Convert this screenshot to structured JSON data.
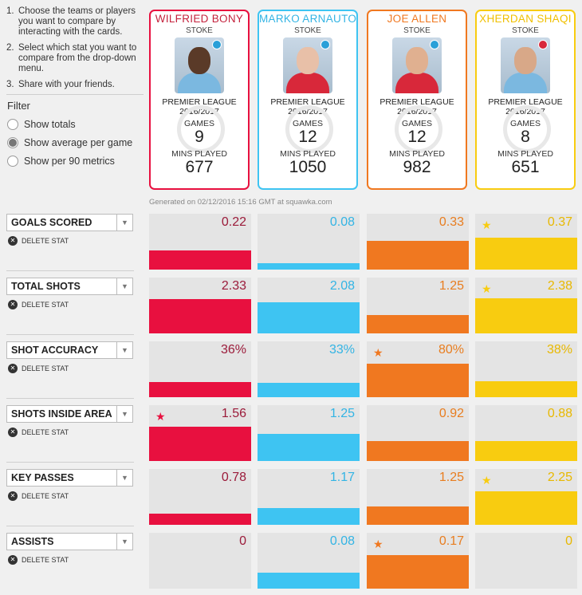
{
  "instructions": [
    {
      "num": "1.",
      "text": "Choose the teams or players you want to compare by interacting with the cards."
    },
    {
      "num": "2.",
      "text": "Select which stat you want to compare from the drop-down menu."
    },
    {
      "num": "3.",
      "text": "Share with your friends."
    }
  ],
  "filter": {
    "title": "Filter",
    "options": [
      "Show totals",
      "Show average per game",
      "Show per 90 metrics"
    ],
    "selected_index": 1
  },
  "labels": {
    "games": "GAMES",
    "mins": "MINS PLAYED",
    "delete": "DELETE STAT"
  },
  "generated": "Generated on 02/12/2016 15:16 GMT at squawka.com",
  "players": [
    {
      "name": "WILFRIED BONY",
      "team": "STOKE",
      "league": "PREMIER LEAGUE",
      "season": "2016/2017",
      "games": "9",
      "mins": "677",
      "color": "#e8103f",
      "name_color": "#c4223d",
      "value_color": "#9b1b3a",
      "skin": "#5a3a28",
      "shirt": "#7bb8e0",
      "badge": "#2aa0d8"
    },
    {
      "name": "MARKO ARNAUTO",
      "team": "STOKE",
      "league": "PREMIER LEAGUE",
      "season": "2016/2017",
      "games": "12",
      "mins": "1050",
      "color": "#3ec4f2",
      "name_color": "#33b4e4",
      "value_color": "#33b4e4",
      "skin": "#e8c0a8",
      "shirt": "#d8283a",
      "badge": "#2aa0d8"
    },
    {
      "name": "JOE ALLEN",
      "team": "STOKE",
      "league": "PREMIER LEAGUE",
      "season": "2016/2017",
      "games": "12",
      "mins": "982",
      "color": "#f07820",
      "name_color": "#f07820",
      "value_color": "#e87d1f",
      "skin": "#e0b090",
      "shirt": "#d8283a",
      "badge": "#2aa0d8"
    },
    {
      "name": "XHERDAN SHAQI",
      "team": "STOKE",
      "league": "PREMIER LEAGUE",
      "season": "2016/2017",
      "games": "8",
      "mins": "651",
      "color": "#f8cc10",
      "name_color": "#f0c000",
      "value_color": "#e8b800",
      "skin": "#d8a888",
      "shirt": "#7bb8e0",
      "badge": "#d8283a"
    }
  ],
  "stats": [
    {
      "name": "GOALS SCORED",
      "values": [
        "0.22",
        "0.08",
        "0.33",
        "0.37"
      ],
      "fills": [
        0.34,
        0.12,
        0.51,
        0.57
      ],
      "star": 3
    },
    {
      "name": "TOTAL SHOTS",
      "values": [
        "2.33",
        "2.08",
        "1.25",
        "2.38"
      ],
      "fills": [
        0.62,
        0.55,
        0.33,
        0.63
      ],
      "star": 3
    },
    {
      "name": "SHOT ACCURACY",
      "values": [
        "36%",
        "33%",
        "80%",
        "38%"
      ],
      "fills": [
        0.27,
        0.25,
        0.6,
        0.29
      ],
      "star": 2
    },
    {
      "name": "SHOTS INSIDE AREA",
      "values": [
        "1.56",
        "1.25",
        "0.92",
        "0.88"
      ],
      "fills": [
        0.62,
        0.49,
        0.36,
        0.35
      ],
      "star": 0
    },
    {
      "name": "KEY PASSES",
      "values": [
        "0.78",
        "1.17",
        "1.25",
        "2.25"
      ],
      "fills": [
        0.2,
        0.3,
        0.33,
        0.6
      ],
      "star": 3
    },
    {
      "name": "ASSISTS",
      "values": [
        "0",
        "0.08",
        "0.17",
        "0"
      ],
      "fills": [
        0,
        0.28,
        0.6,
        0
      ],
      "star": 2
    }
  ],
  "icons": {
    "star": "star-icon",
    "delete": "close-circle-icon",
    "dropdown": "chevron-down-icon",
    "club_badge": "club-badge-icon"
  }
}
